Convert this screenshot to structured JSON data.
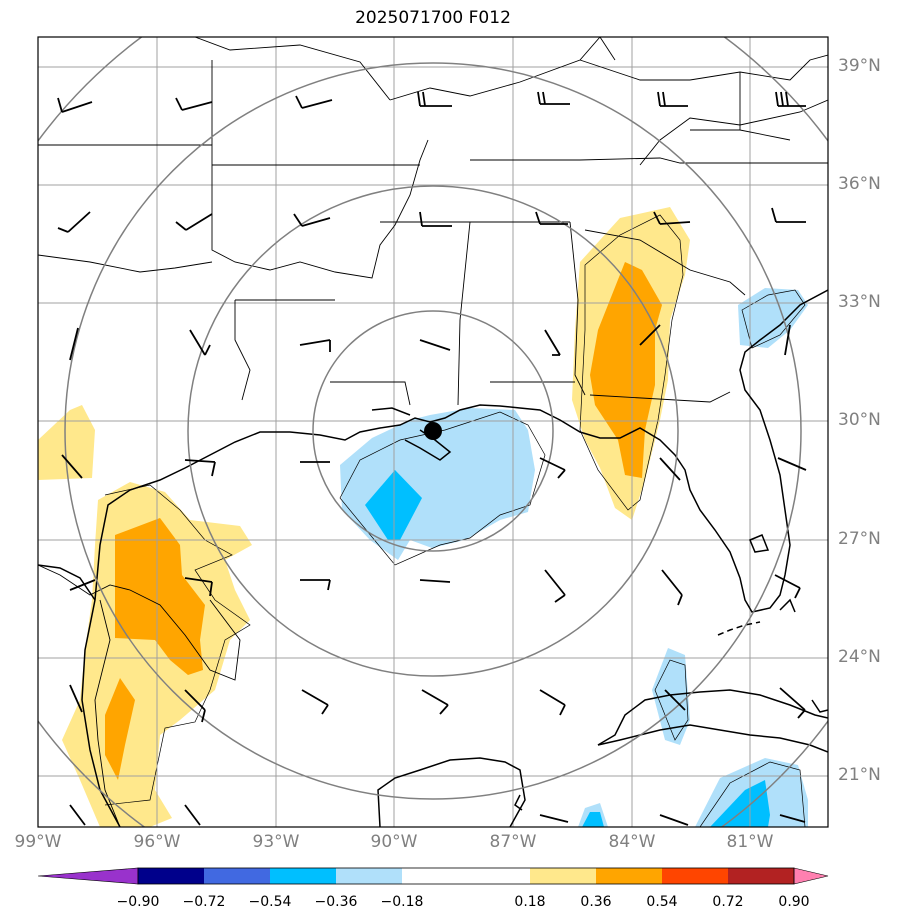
{
  "title": "2025071700 F012",
  "lat_labels": [
    "39°N",
    "36°N",
    "33°N",
    "30°N",
    "27°N",
    "24°N",
    "21°N"
  ],
  "lon_labels": [
    "99°W",
    "96°W",
    "93°W",
    "90°W",
    "87°W",
    "84°W",
    "81°W"
  ],
  "colorbar": {
    "boundaries": [
      "−0.90",
      "−0.72",
      "−0.54",
      "−0.36",
      "−0.18",
      "0.18",
      "0.36",
      "0.54",
      "0.72",
      "0.90"
    ],
    "colors": [
      "#9932cc",
      "#00008b",
      "#4169e1",
      "#00bfff",
      "#b0e0fa",
      "#ffffff",
      "#ffe88c",
      "#ffa500",
      "#ff4500",
      "#b22222",
      "#ff80b0"
    ]
  },
  "colors": {
    "light_blue": "#b0e0fa",
    "mid_blue": "#00bfff",
    "light_yellow": "#ffe88c",
    "orange": "#ffa500",
    "grid": "#a0a0a0",
    "range_rings": "#808080",
    "axis_labels": "#808080"
  },
  "marker": "storm-center-dot"
}
